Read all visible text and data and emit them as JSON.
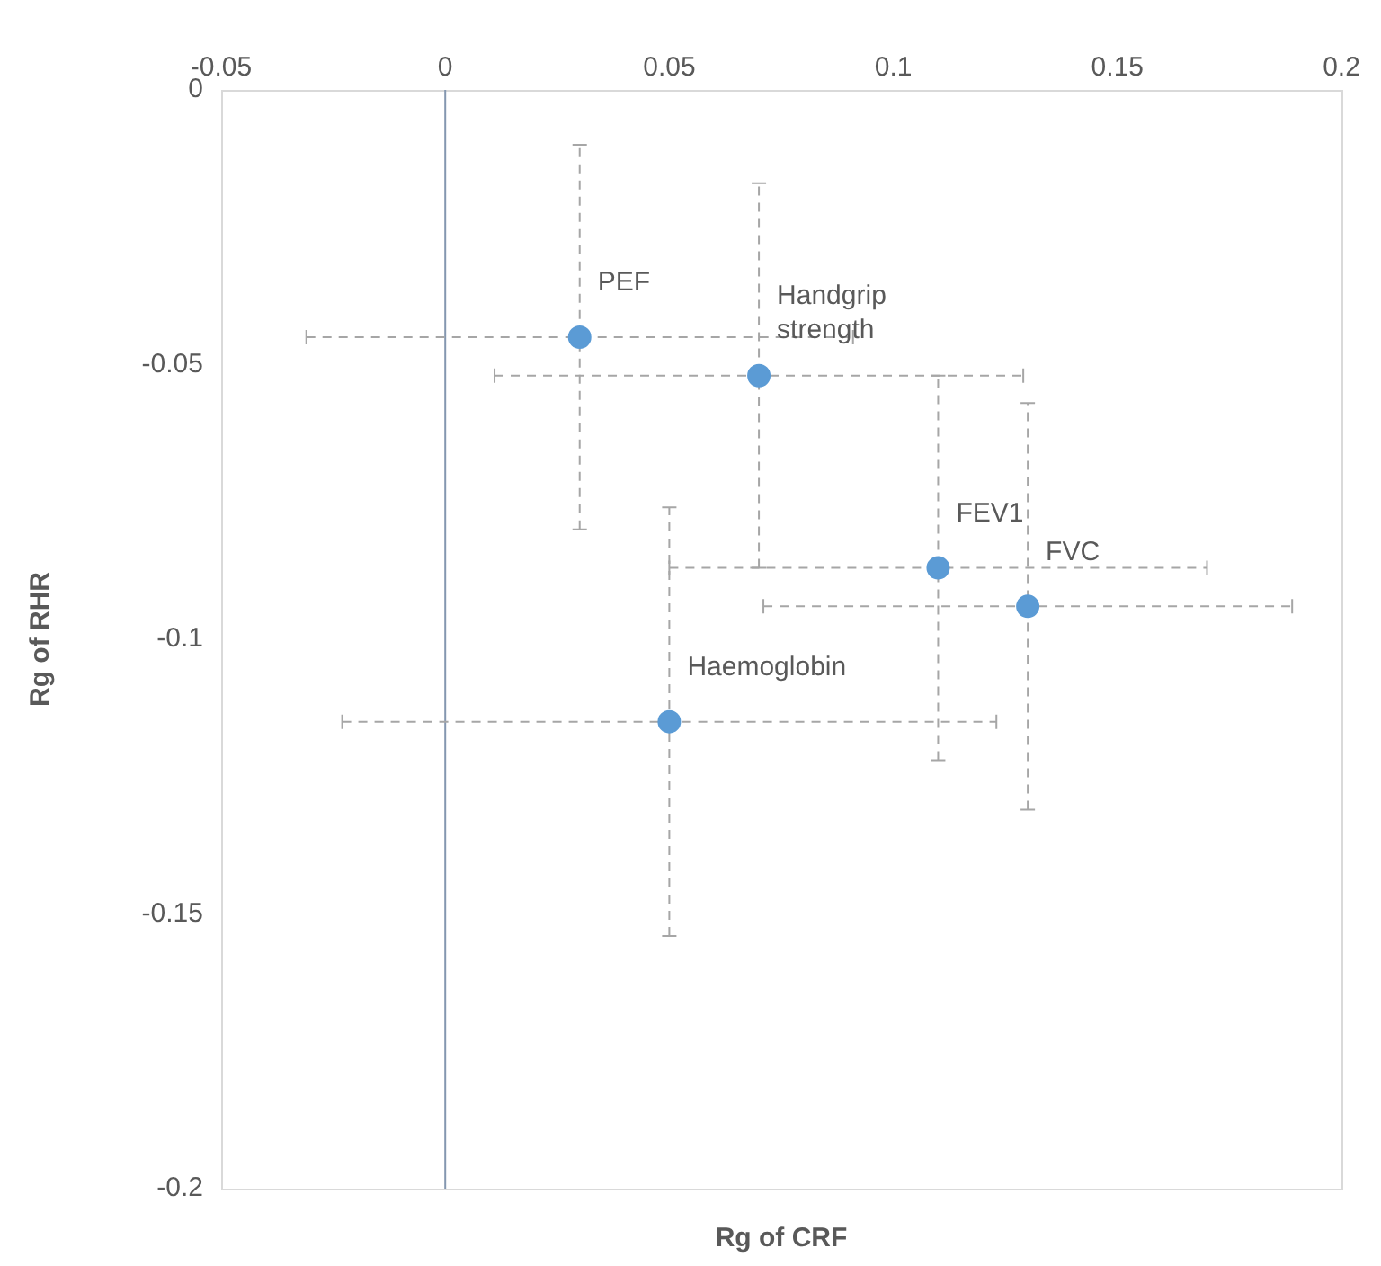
{
  "chart_data": {
    "type": "scatter",
    "xlabel": "Rg of CRF",
    "ylabel": "Rg of RHR",
    "xlim": [
      -0.05,
      0.2
    ],
    "xticks": [
      -0.05,
      0,
      0.05,
      0.1,
      0.15,
      0.2
    ],
    "ylim": [
      -0.2,
      0
    ],
    "yticks": [
      -0.2,
      -0.15,
      -0.1,
      -0.05,
      0
    ],
    "grid": false,
    "legend": false,
    "marker": "circle",
    "ref_lines": [
      {
        "axis": "x",
        "value": 0,
        "color": "#8497b0"
      }
    ],
    "series": [
      {
        "name": "PEF",
        "color": "#5b9bd5",
        "x": [
          0.03
        ],
        "values": [
          -0.045
        ],
        "errors": [
          0.035
        ],
        "xerrors": [
          0.061
        ]
      },
      {
        "name": "Handgrip strength",
        "color": "#5b9bd5",
        "x": [
          0.07
        ],
        "values": [
          -0.052
        ],
        "errors": [
          0.035
        ],
        "xerrors": [
          0.059
        ]
      },
      {
        "name": "FEV1",
        "color": "#5b9bd5",
        "x": [
          0.11
        ],
        "values": [
          -0.087
        ],
        "errors": [
          0.035
        ],
        "xerrors": [
          0.06
        ]
      },
      {
        "name": "FVC",
        "color": "#5b9bd5",
        "x": [
          0.13
        ],
        "values": [
          -0.094
        ],
        "errors": [
          0.037
        ],
        "xerrors": [
          0.059
        ]
      },
      {
        "name": "Haemoglobin",
        "color": "#5b9bd5",
        "x": [
          0.05
        ],
        "values": [
          -0.115
        ],
        "errors": [
          0.039
        ],
        "xerrors": [
          0.073
        ]
      }
    ]
  }
}
